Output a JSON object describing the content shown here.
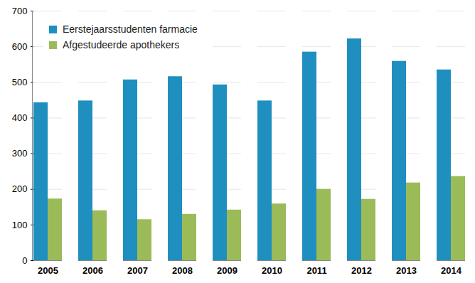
{
  "chart_data": {
    "type": "bar",
    "categories": [
      "2005",
      "2006",
      "2007",
      "2008",
      "2009",
      "2010",
      "2011",
      "2012",
      "2013",
      "2014"
    ],
    "series": [
      {
        "name": "Eerstejaarsstudenten farmacie",
        "color": "#1f8fc0",
        "values": [
          443,
          448,
          507,
          516,
          493,
          448,
          585,
          622,
          559,
          535
        ]
      },
      {
        "name": "Afgestudeerde apothekers",
        "color": "#9bbb59",
        "values": [
          173,
          140,
          115,
          130,
          142,
          159,
          200,
          172,
          218,
          236
        ]
      }
    ],
    "ylim": [
      0,
      700
    ],
    "yticks": [
      0,
      100,
      200,
      300,
      400,
      500,
      600,
      700
    ],
    "grid": true,
    "legend": "top-left"
  }
}
